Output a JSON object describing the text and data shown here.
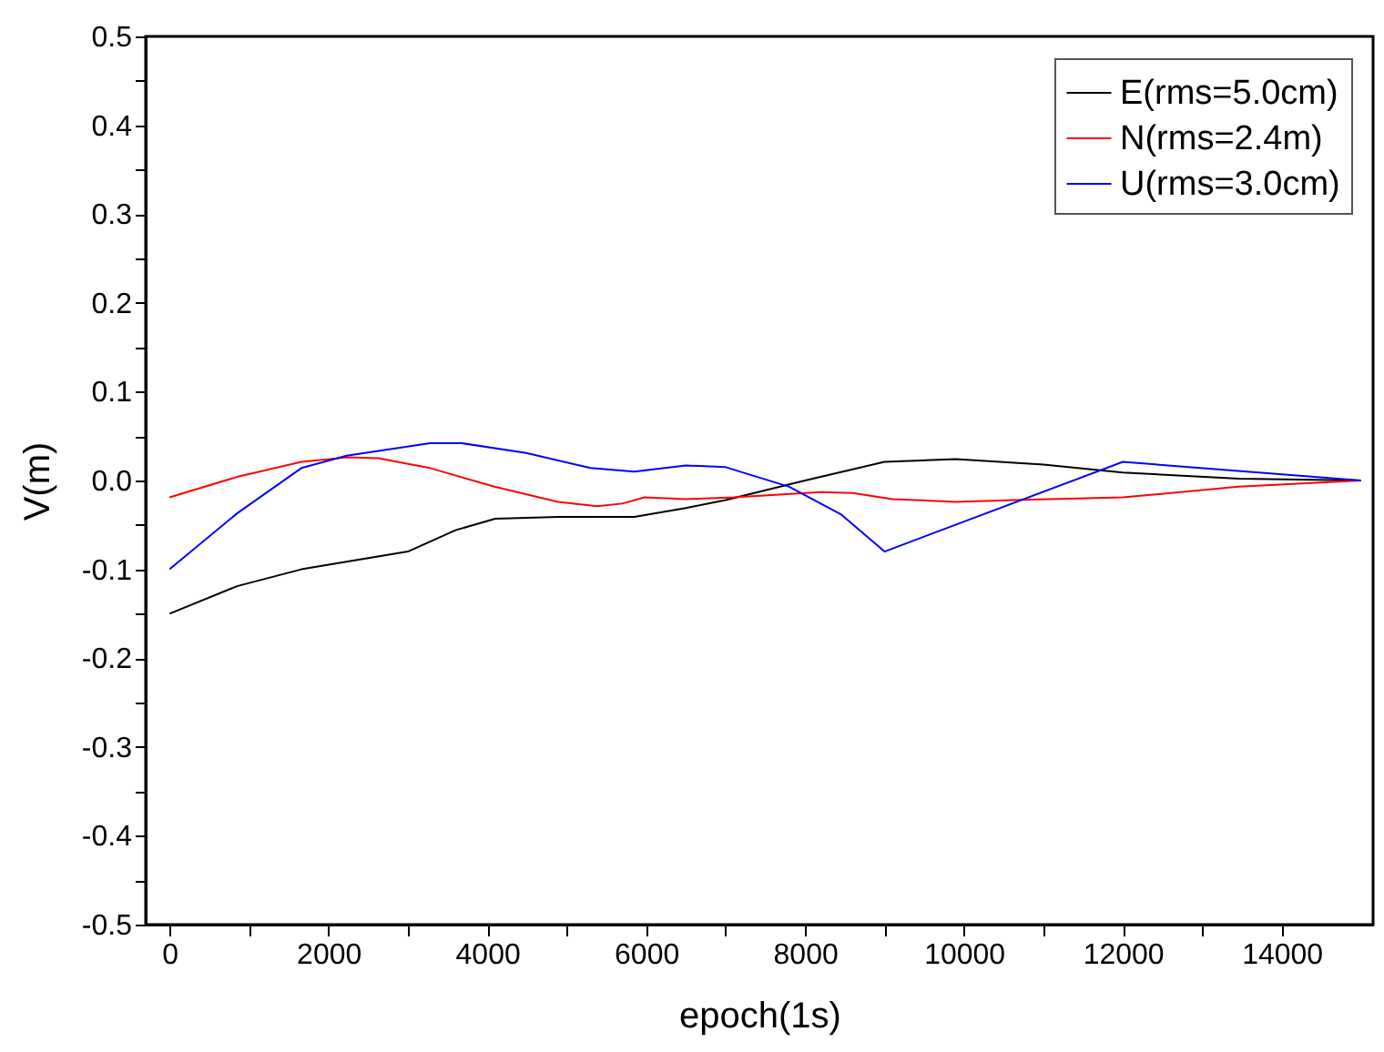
{
  "chart_data": {
    "type": "line",
    "xlabel": "epoch(1s)",
    "ylabel": "V(m)",
    "xlim": [
      -300,
      15150
    ],
    "ylim": [
      -0.5,
      0.5
    ],
    "xticks": [
      0,
      {
        "value": 1000,
        "label": null
      },
      2000,
      {
        "value": 3000,
        "label": null
      },
      4000,
      {
        "value": 5000,
        "label": null
      },
      6000,
      {
        "value": 7000,
        "label": null
      },
      8000,
      {
        "value": 9000,
        "label": null
      },
      10000,
      {
        "value": 11000,
        "label": null
      },
      12000,
      {
        "value": 13000,
        "label": null
      },
      14000
    ],
    "yticks": [
      -0.5,
      {
        "value": -0.45,
        "label": null
      },
      -0.4,
      {
        "value": -0.35,
        "label": null
      },
      -0.3,
      {
        "value": -0.25,
        "label": null
      },
      -0.2,
      {
        "value": -0.15,
        "label": null
      },
      -0.1,
      {
        "value": -0.05,
        "label": null
      },
      {
        "value": 0,
        "label": "0.0"
      },
      {
        "value": 0.05,
        "label": null
      },
      0.1,
      {
        "value": 0.15,
        "label": null
      },
      0.2,
      {
        "value": 0.25,
        "label": null
      },
      0.3,
      {
        "value": 0.35,
        "label": null
      },
      0.4,
      {
        "value": 0.45,
        "label": null
      },
      0.5
    ],
    "grid": false,
    "legend": "top right",
    "marker": "none",
    "line_style": "solid",
    "series": [
      {
        "name": "E(rms=5.0cm)",
        "color": "#000000",
        "x": [
          0,
          850,
          1660,
          3000,
          3600,
          4100,
          4900,
          5850,
          6500,
          7000,
          8000,
          9000,
          9900,
          11000,
          12000,
          13460,
          15000
        ],
        "values": [
          -0.15,
          -0.119,
          -0.1,
          -0.08,
          -0.056,
          -0.043,
          -0.041,
          -0.041,
          -0.031,
          -0.022,
          0.0,
          0.021,
          0.024,
          0.018,
          0.009,
          0.002,
          0.0
        ]
      },
      {
        "name": "N(rms=2.4m)",
        "color": "#ff0000",
        "x": [
          0,
          850,
          1660,
          2230,
          2630,
          3280,
          4090,
          4890,
          5380,
          5700,
          5980,
          6500,
          7100,
          8200,
          8600,
          9100,
          9900,
          10630,
          12000,
          13460,
          15000
        ],
        "values": [
          -0.019,
          0.004,
          0.021,
          0.026,
          0.025,
          0.014,
          -0.007,
          -0.024,
          -0.029,
          -0.026,
          -0.019,
          -0.021,
          -0.019,
          -0.013,
          -0.014,
          -0.021,
          -0.024,
          -0.022,
          -0.019,
          -0.007,
          0.0
        ]
      },
      {
        "name": "U(rms=3.0cm)",
        "color": "#0000ff",
        "x": [
          0,
          850,
          1660,
          2230,
          3280,
          3680,
          4490,
          5300,
          5850,
          6500,
          7000,
          7800,
          8450,
          9000,
          12000,
          15000
        ],
        "values": [
          -0.1,
          -0.037,
          0.014,
          0.028,
          0.042,
          0.042,
          0.031,
          0.014,
          0.01,
          0.017,
          0.015,
          -0.007,
          -0.038,
          -0.08,
          0.021,
          0.0
        ]
      }
    ]
  }
}
